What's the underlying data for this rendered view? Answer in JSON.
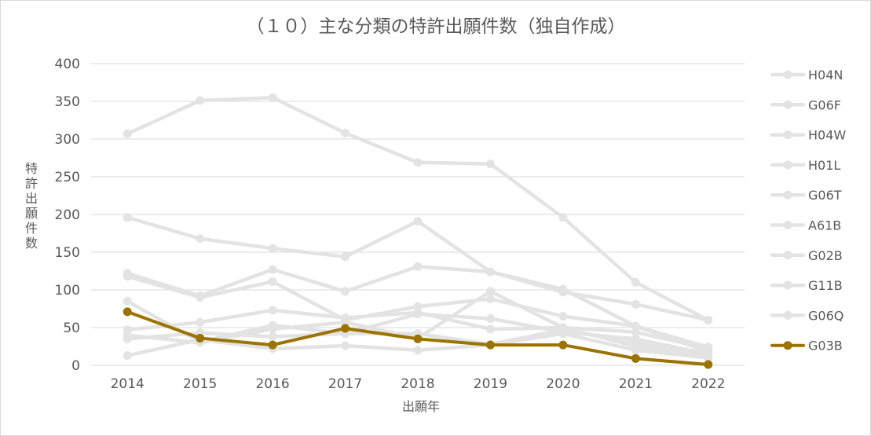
{
  "chart_data": {
    "type": "line",
    "title": "（１０）主な分類の特許出願件数（独自作成）",
    "xlabel": "出願年",
    "ylabel": "特許出願件数",
    "ylim": [
      0,
      400
    ],
    "yticks": [
      0,
      50,
      100,
      150,
      200,
      250,
      300,
      350,
      400
    ],
    "x": [
      "2014",
      "2015",
      "2016",
      "2017",
      "2018",
      "2019",
      "2020",
      "2021",
      "2022"
    ],
    "grid": true,
    "legend_position": "right",
    "series": [
      {
        "name": "H04N",
        "color": "#e3e3e3",
        "values": [
          307,
          351,
          355,
          308,
          269,
          267,
          196,
          110,
          60
        ]
      },
      {
        "name": "G06F",
        "color": "#e3e3e3",
        "values": [
          196,
          168,
          155,
          144,
          191,
          124,
          97,
          81,
          60
        ]
      },
      {
        "name": "H04W",
        "color": "#e3e3e3",
        "values": [
          122,
          92,
          127,
          98,
          131,
          124,
          101,
          52,
          24
        ]
      },
      {
        "name": "H01L",
        "color": "#e3e3e3",
        "values": [
          118,
          90,
          111,
          60,
          78,
          88,
          65,
          52,
          18
        ]
      },
      {
        "name": "G06T",
        "color": "#e3e3e3",
        "values": [
          85,
          31,
          53,
          42,
          68,
          62,
          44,
          35,
          15
        ]
      },
      {
        "name": "A61B",
        "color": "#e3e3e3",
        "values": [
          47,
          57,
          73,
          63,
          70,
          48,
          50,
          44,
          22
        ]
      },
      {
        "name": "G02B",
        "color": "#e3e3e3",
        "values": [
          40,
          30,
          48,
          57,
          36,
          98,
          50,
          25,
          14
        ]
      },
      {
        "name": "G11B",
        "color": "#e3e3e3",
        "values": [
          35,
          43,
          38,
          42,
          42,
          28,
          47,
          30,
          12
        ]
      },
      {
        "name": "G06Q",
        "color": "#e3e3e3",
        "values": [
          13,
          34,
          22,
          26,
          20,
          27,
          42,
          20,
          10
        ]
      },
      {
        "name": "G03B",
        "color": "#9a7300",
        "values": [
          71,
          36,
          27,
          49,
          35,
          27,
          27,
          9,
          1
        ]
      }
    ]
  }
}
